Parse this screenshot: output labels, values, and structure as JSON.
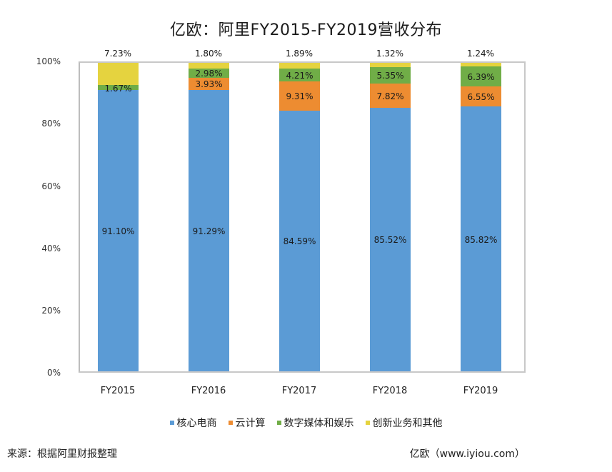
{
  "chart_data": {
    "type": "bar",
    "stacked": true,
    "title": "亿欧：阿里FY2015-FY2019营收分布",
    "categories": [
      "FY2015",
      "FY2016",
      "FY2017",
      "FY2018",
      "FY2019"
    ],
    "series": [
      {
        "name": "核心电商",
        "color": "#5b9bd5",
        "values": [
          91.1,
          91.29,
          84.59,
          85.52,
          85.82
        ]
      },
      {
        "name": "云计算",
        "color": "#ed8c31",
        "values": [
          0,
          3.93,
          9.31,
          7.82,
          6.55
        ]
      },
      {
        "name": "数字媒体和娱乐",
        "color": "#70ad47",
        "values": [
          1.67,
          2.98,
          4.21,
          5.35,
          6.39
        ]
      },
      {
        "name": "创新业务和其他",
        "color": "#e5d33f",
        "values": [
          7.23,
          1.8,
          1.89,
          1.32,
          1.24
        ]
      }
    ],
    "labels": {
      "core": [
        "91.10%",
        "91.29%",
        "84.59%",
        "85.52%",
        "85.82%"
      ],
      "cloud": [
        "",
        "3.93%",
        "9.31%",
        "7.82%",
        "6.55%"
      ],
      "media": [
        "1.67%",
        "2.98%",
        "4.21%",
        "5.35%",
        "6.39%"
      ],
      "other": [
        "7.23%",
        "1.80%",
        "1.89%",
        "1.32%",
        "1.24%"
      ]
    },
    "xlabel": "",
    "ylabel": "",
    "ylim": [
      0,
      100
    ],
    "yticks": [
      "0%",
      "20%",
      "40%",
      "60%",
      "80%",
      "100%"
    ],
    "grid": false,
    "legend_position": "bottom"
  },
  "footer": {
    "source": "来源：根据阿里财报整理",
    "credit": "亿欧（www.iyiou.com）"
  }
}
